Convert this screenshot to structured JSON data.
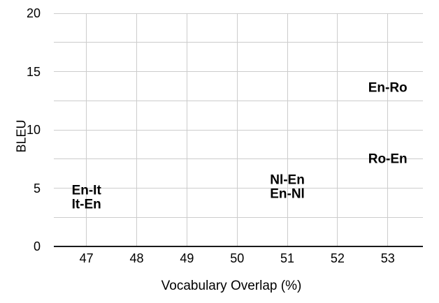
{
  "chart_data": {
    "type": "scatter",
    "title": "",
    "xlabel": "Vocabulary Overlap (%)",
    "ylabel": "BLEU",
    "xlim": [
      46.35,
      53.7
    ],
    "ylim": [
      0,
      20
    ],
    "x_ticks": [
      47,
      48,
      49,
      50,
      51,
      52,
      53
    ],
    "y_ticks": [
      0,
      5,
      10,
      15,
      20
    ],
    "y_minor_step": 2.5,
    "grid": {
      "vertical": "major-only",
      "horizontal": "every-2.5"
    },
    "legend": "none",
    "marker_style": "bold-text-label",
    "points": [
      {
        "label": "En-It",
        "x": 47.0,
        "y": 4.8
      },
      {
        "label": "It-En",
        "x": 47.0,
        "y": 3.6
      },
      {
        "label": "Nl-En",
        "x": 51.0,
        "y": 5.7
      },
      {
        "label": "En-Nl",
        "x": 51.0,
        "y": 4.5
      },
      {
        "label": "En-Ro",
        "x": 53.0,
        "y": 13.6
      },
      {
        "label": "Ro-En",
        "x": 53.0,
        "y": 7.5
      }
    ],
    "colors": {
      "background": "#ffffff",
      "gridline": "#cccccc",
      "axis_line": "#1a1a1a",
      "text": "#000000"
    }
  }
}
